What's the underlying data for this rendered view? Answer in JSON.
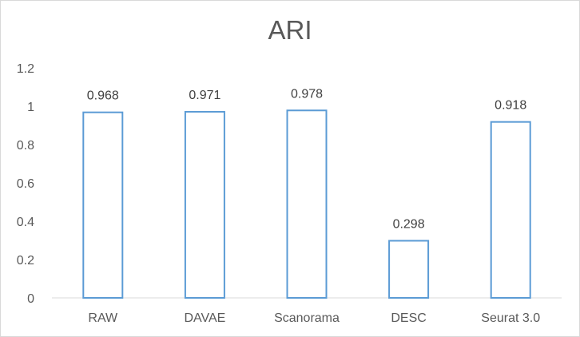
{
  "chart_data": {
    "type": "bar",
    "title": "ARI",
    "categories": [
      "RAW",
      "DAVAE",
      "Scanorama",
      "DESC",
      "Seurat 3.0"
    ],
    "values": [
      0.968,
      0.971,
      0.978,
      0.298,
      0.918
    ],
    "value_labels": [
      "0.968",
      "0.971",
      "0.978",
      "0.298",
      "0.918"
    ],
    "yticks": [
      "0",
      "0.2",
      "0.4",
      "0.6",
      "0.8",
      "1",
      "1.2"
    ],
    "ylim": [
      0,
      1.2
    ],
    "grid": false,
    "legend": "none",
    "bar_style": "outline",
    "colors": {
      "bar_stroke": "#5b9bd5",
      "bar_fill": "#ffffff",
      "axis": "#d9d9d9",
      "text": "#595959"
    }
  }
}
